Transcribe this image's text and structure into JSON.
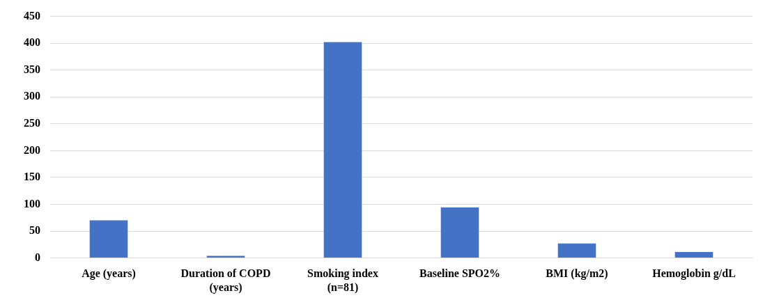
{
  "chart_data": {
    "type": "bar",
    "categories": [
      "Age (years)",
      "Duration of COPD (years)",
      "Smoking index (n=81)",
      "Baseline SPO2%",
      "BMI (kg/m2)",
      "Hemoglobin g/dL"
    ],
    "values": [
      70,
      4,
      402,
      94,
      27,
      11
    ],
    "color": "#4472c4",
    "ylim": [
      0,
      450
    ],
    "yticks": [
      0,
      50,
      100,
      150,
      200,
      250,
      300,
      350,
      400,
      450
    ],
    "grid": "y",
    "legend": false
  }
}
